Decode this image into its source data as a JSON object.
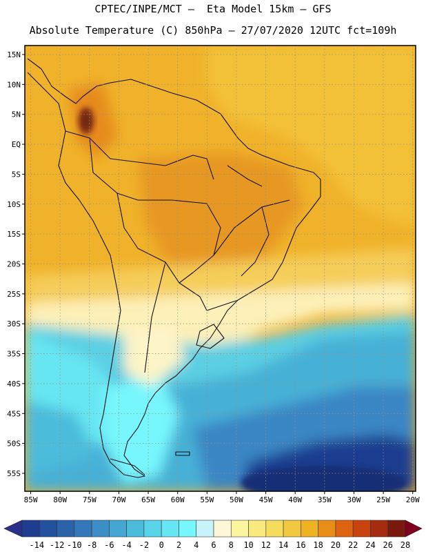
{
  "header": {
    "line1": "CPTEC/INPE/MCT –  Eta Model 15km – GFS",
    "line2": "Absolute Temperature (C) 850hPa – 27/07/2020 12UTC fct=109h"
  },
  "map": {
    "region": "South America",
    "variable": "Absolute Temperature (C) 850hPa",
    "lat_labels": [
      "15N",
      "10N",
      "5N",
      "EQ",
      "5S",
      "10S",
      "15S",
      "20S",
      "25S",
      "30S",
      "35S",
      "40S",
      "45S",
      "50S",
      "55S"
    ],
    "lon_labels": [
      "85W",
      "80W",
      "75W",
      "70W",
      "65W",
      "60W",
      "55W",
      "50W",
      "45W",
      "40W",
      "35W",
      "30W",
      "25W",
      "20W"
    ],
    "lat_values": [
      15,
      10,
      5,
      0,
      -5,
      -10,
      -15,
      -20,
      -25,
      -30,
      -35,
      -40,
      -45,
      -50,
      -55
    ],
    "lon_values": [
      -85,
      -80,
      -75,
      -70,
      -65,
      -60,
      -55,
      -50,
      -45,
      -40,
      -35,
      -30,
      -25,
      -20
    ],
    "lat_range": [
      -58,
      16.5
    ],
    "lon_range": [
      -86,
      -19.5
    ]
  },
  "legend": {
    "labels": [
      "-14",
      "-12",
      "-10",
      "-8",
      "-6",
      "-4",
      "-2",
      "0",
      "2",
      "4",
      "6",
      "8",
      "10",
      "12",
      "14",
      "16",
      "18",
      "20",
      "22",
      "24",
      "26",
      "28"
    ],
    "colors": [
      "#1f3d8f",
      "#24519e",
      "#2b63ab",
      "#3577b8",
      "#3d8ec6",
      "#44a6d2",
      "#4cbcdc",
      "#58d3e8",
      "#66e6f2",
      "#77f6fd",
      "#c9f3fb",
      "#fdf6d8",
      "#fbf5a0",
      "#f8ea7d",
      "#f5dc5d",
      "#f1c840",
      "#edb322",
      "#e88d15",
      "#dd6311",
      "#c9430f",
      "#a52c10",
      "#7a1a0e",
      "#800020"
    ]
  },
  "colors": {
    "warm": "#eda61a",
    "hot": "#e27e1a",
    "cold": "#1d3d8c",
    "land_line": "#111111"
  }
}
